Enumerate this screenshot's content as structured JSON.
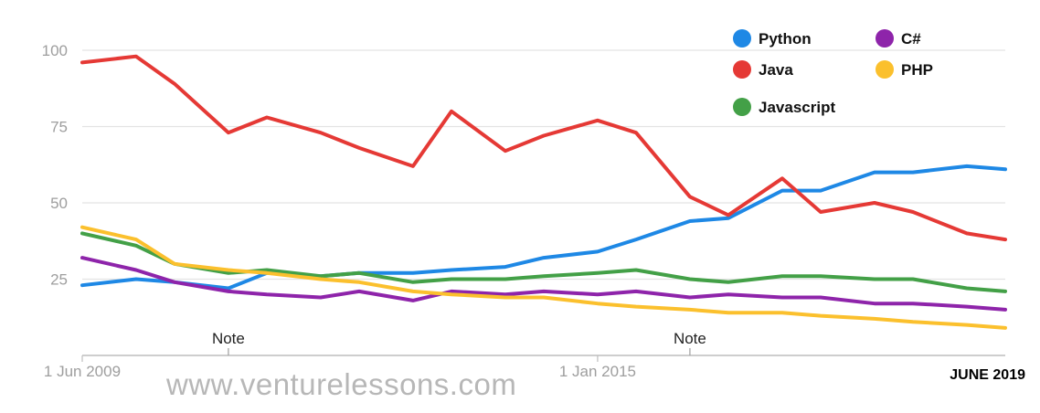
{
  "chart_data": {
    "type": "line",
    "ylim": [
      0,
      100
    ],
    "y_ticks": [
      25,
      50,
      75,
      100
    ],
    "y_tick_labels": [
      "25",
      "50",
      "75",
      "100"
    ],
    "xlim": [
      "2009-06",
      "2019-06"
    ],
    "x_tick_labels": [
      {
        "date": "2009-06",
        "label": "1 Jun 2009"
      },
      {
        "date": "2015-01",
        "label": "1 Jan 2015"
      }
    ],
    "annotations": [
      {
        "date": "2011-01",
        "label": "Note"
      },
      {
        "date": "2016-01",
        "label": "Note"
      }
    ],
    "corner_label": "JUNE 2019",
    "watermark": "www.venturelessons.com",
    "grid": true,
    "legend_position": "top-right",
    "x": [
      "2009-06",
      "2010-01",
      "2010-06",
      "2011-01",
      "2011-06",
      "2012-01",
      "2012-06",
      "2013-01",
      "2013-06",
      "2014-01",
      "2014-06",
      "2015-01",
      "2015-06",
      "2016-01",
      "2016-06",
      "2017-01",
      "2017-06",
      "2018-01",
      "2018-06",
      "2019-01",
      "2019-06"
    ],
    "series": [
      {
        "name": "Python",
        "color": "#1e88e5",
        "values": [
          23,
          25,
          24,
          22,
          27,
          26,
          27,
          27,
          28,
          29,
          32,
          34,
          38,
          44,
          45,
          54,
          54,
          60,
          60,
          62,
          61
        ]
      },
      {
        "name": "Java",
        "color": "#e53935",
        "values": [
          96,
          98,
          89,
          73,
          78,
          73,
          68,
          62,
          80,
          67,
          72,
          77,
          73,
          52,
          46,
          58,
          47,
          50,
          47,
          40,
          38
        ]
      },
      {
        "name": "Javascript",
        "color": "#43a047",
        "values": [
          40,
          36,
          30,
          27,
          28,
          26,
          27,
          24,
          25,
          25,
          26,
          27,
          28,
          25,
          24,
          26,
          26,
          25,
          25,
          22,
          21
        ]
      },
      {
        "name": "C#",
        "color": "#8e24aa",
        "values": [
          32,
          28,
          24,
          21,
          20,
          19,
          21,
          18,
          21,
          20,
          21,
          20,
          21,
          19,
          20,
          19,
          19,
          17,
          17,
          16,
          15
        ]
      },
      {
        "name": "PHP",
        "color": "#fbc02d",
        "values": [
          42,
          38,
          30,
          28,
          27,
          25,
          24,
          21,
          20,
          19,
          19,
          17,
          16,
          15,
          14,
          14,
          13,
          12,
          11,
          10,
          9
        ]
      }
    ]
  }
}
